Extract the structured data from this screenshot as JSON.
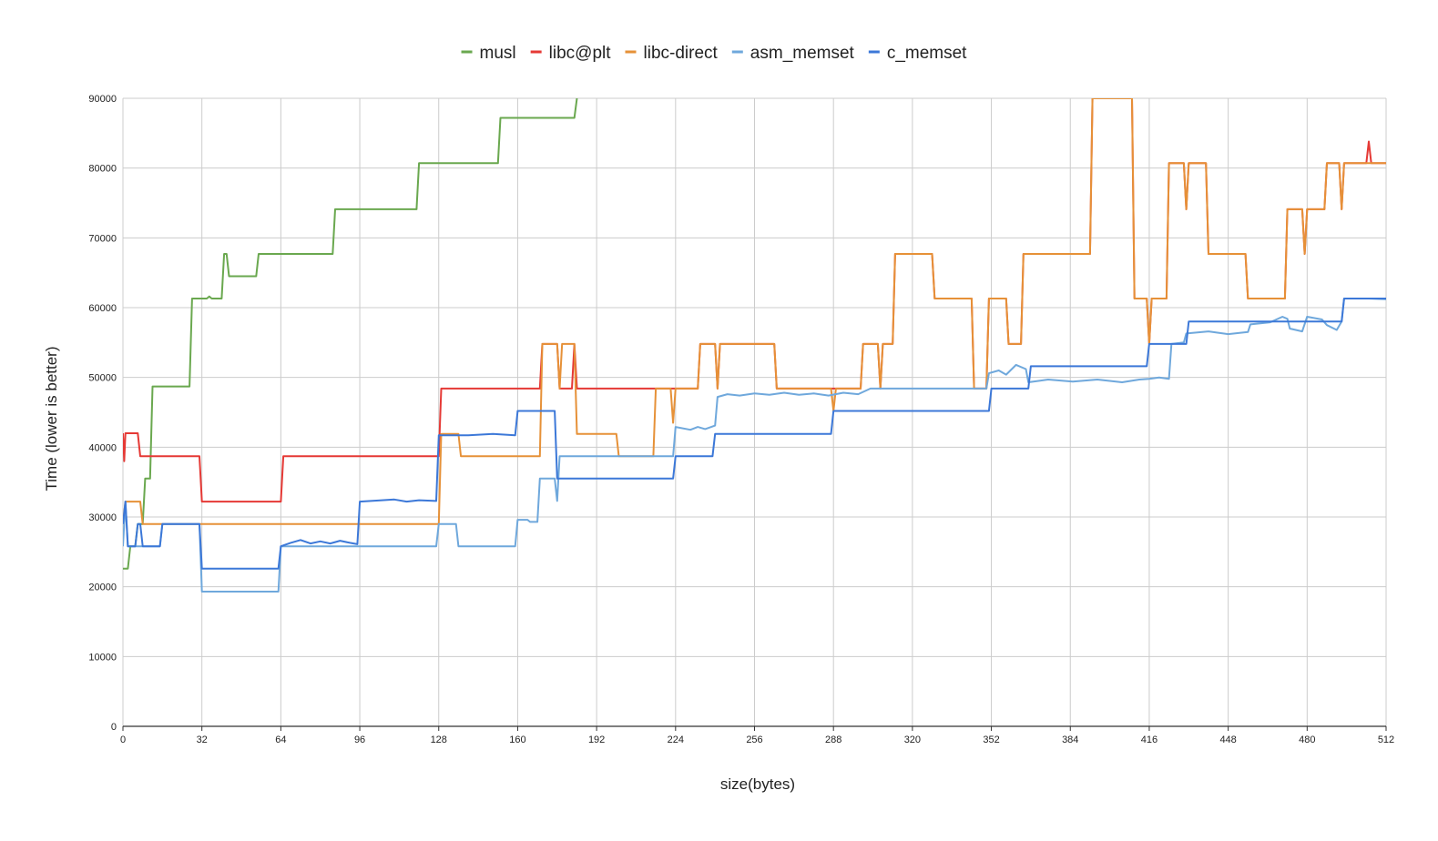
{
  "chart_data": {
    "type": "line",
    "title": "",
    "xlabel": "size(bytes)",
    "ylabel": "Time (lower is better)",
    "xlim": [
      0,
      512
    ],
    "ylim": [
      0,
      90000
    ],
    "x_ticks": [
      0,
      32,
      64,
      96,
      128,
      160,
      192,
      224,
      256,
      288,
      320,
      352,
      384,
      416,
      448,
      480,
      512
    ],
    "y_ticks": [
      0,
      10000,
      20000,
      30000,
      40000,
      50000,
      60000,
      70000,
      80000,
      90000
    ],
    "grid": true,
    "legend_position": "top-center",
    "series": [
      {
        "name": "musl",
        "color": "#6aa84f",
        "points": [
          [
            0,
            22600
          ],
          [
            1,
            22600
          ],
          [
            2,
            22600
          ],
          [
            3,
            25800
          ],
          [
            5,
            25800
          ],
          [
            6,
            29000
          ],
          [
            7,
            29000
          ],
          [
            8,
            29000
          ],
          [
            9,
            35500
          ],
          [
            10,
            35500
          ],
          [
            11,
            35500
          ],
          [
            12,
            48700
          ],
          [
            14,
            48700
          ],
          [
            20,
            48700
          ],
          [
            26,
            48700
          ],
          [
            27,
            48700
          ],
          [
            28,
            61300
          ],
          [
            29,
            61300
          ],
          [
            34,
            61300
          ],
          [
            35,
            61600
          ],
          [
            36,
            61300
          ],
          [
            40,
            61300
          ],
          [
            41,
            67700
          ],
          [
            42,
            67700
          ],
          [
            43,
            64500
          ],
          [
            54,
            64500
          ],
          [
            55,
            67700
          ],
          [
            85,
            67700
          ],
          [
            86,
            74100
          ],
          [
            119,
            74100
          ],
          [
            120,
            80700
          ],
          [
            152,
            80700
          ],
          [
            153,
            87200
          ],
          [
            183,
            87200
          ],
          [
            184,
            90000
          ]
        ]
      },
      {
        "name": "libc@plt",
        "color": "#e53935",
        "points": [
          [
            0,
            42000
          ],
          [
            0.5,
            38000
          ],
          [
            1,
            42000
          ],
          [
            6,
            42000
          ],
          [
            7,
            38700
          ],
          [
            31,
            38700
          ],
          [
            32,
            32200
          ],
          [
            64,
            32200
          ],
          [
            65,
            38700
          ],
          [
            128,
            38700
          ],
          [
            129,
            48400
          ],
          [
            169,
            48400
          ],
          [
            170,
            54800
          ],
          [
            176,
            54800
          ],
          [
            177,
            48400
          ],
          [
            182,
            48400
          ],
          [
            183,
            54800
          ],
          [
            184,
            48400
          ],
          [
            223,
            48400
          ],
          [
            224,
            48400
          ],
          [
            233,
            48400
          ],
          [
            234,
            54800
          ],
          [
            240,
            54800
          ],
          [
            241,
            48400
          ],
          [
            242,
            54800
          ],
          [
            264,
            54800
          ],
          [
            265,
            48400
          ],
          [
            299,
            48400
          ],
          [
            300,
            54800
          ],
          [
            306,
            54800
          ],
          [
            307,
            48400
          ],
          [
            308,
            54800
          ],
          [
            312,
            54800
          ],
          [
            313,
            67700
          ],
          [
            328,
            67700
          ],
          [
            329,
            61300
          ],
          [
            344,
            61300
          ],
          [
            345,
            48400
          ],
          [
            350,
            48400
          ],
          [
            351,
            61300
          ],
          [
            358,
            61300
          ],
          [
            359,
            54800
          ],
          [
            364,
            54800
          ],
          [
            365,
            67700
          ],
          [
            392,
            67700
          ],
          [
            393,
            90000
          ],
          [
            409,
            90000
          ],
          [
            410,
            61300
          ],
          [
            415,
            61300
          ],
          [
            416,
            54800
          ],
          [
            417,
            61300
          ],
          [
            423,
            61300
          ],
          [
            424,
            80700
          ],
          [
            430,
            80700
          ],
          [
            431,
            74100
          ],
          [
            432,
            80700
          ],
          [
            439,
            80700
          ],
          [
            440,
            67700
          ],
          [
            455,
            67700
          ],
          [
            456,
            61300
          ],
          [
            471,
            61300
          ],
          [
            472,
            74100
          ],
          [
            478,
            74100
          ],
          [
            479,
            67700
          ],
          [
            480,
            74100
          ],
          [
            487,
            74100
          ],
          [
            488,
            80700
          ],
          [
            493,
            80700
          ],
          [
            494,
            74100
          ],
          [
            495,
            80700
          ],
          [
            504,
            80700
          ],
          [
            505,
            83800
          ],
          [
            506,
            80700
          ],
          [
            512,
            80700
          ]
        ]
      },
      {
        "name": "libc-direct",
        "color": "#e69138",
        "points": [
          [
            0,
            29000
          ],
          [
            1,
            32200
          ],
          [
            7,
            32200
          ],
          [
            8,
            29000
          ],
          [
            128,
            29000
          ],
          [
            129,
            41900
          ],
          [
            136,
            41900
          ],
          [
            137,
            38700
          ],
          [
            169,
            38700
          ],
          [
            170,
            54800
          ],
          [
            176,
            54800
          ],
          [
            177,
            48400
          ],
          [
            178,
            54800
          ],
          [
            183,
            54800
          ],
          [
            184,
            41900
          ],
          [
            200,
            41900
          ],
          [
            201,
            38700
          ],
          [
            215,
            38700
          ],
          [
            216,
            48400
          ],
          [
            222,
            48400
          ],
          [
            223,
            43500
          ],
          [
            224,
            48400
          ],
          [
            233,
            48400
          ],
          [
            234,
            54800
          ],
          [
            240,
            54800
          ],
          [
            241,
            48400
          ],
          [
            242,
            54800
          ],
          [
            264,
            54800
          ],
          [
            265,
            48400
          ],
          [
            287,
            48400
          ],
          [
            288,
            45200
          ],
          [
            289,
            48400
          ],
          [
            299,
            48400
          ],
          [
            300,
            54800
          ],
          [
            306,
            54800
          ],
          [
            307,
            48400
          ],
          [
            308,
            54800
          ],
          [
            312,
            54800
          ],
          [
            313,
            67700
          ],
          [
            328,
            67700
          ],
          [
            329,
            61300
          ],
          [
            344,
            61300
          ],
          [
            345,
            48400
          ],
          [
            350,
            48400
          ],
          [
            351,
            61300
          ],
          [
            358,
            61300
          ],
          [
            359,
            54800
          ],
          [
            364,
            54800
          ],
          [
            365,
            67700
          ],
          [
            392,
            67700
          ],
          [
            393,
            90000
          ],
          [
            409,
            90000
          ],
          [
            410,
            61300
          ],
          [
            415,
            61300
          ],
          [
            416,
            54800
          ],
          [
            417,
            61300
          ],
          [
            423,
            61300
          ],
          [
            424,
            80700
          ],
          [
            430,
            80700
          ],
          [
            431,
            74100
          ],
          [
            432,
            80700
          ],
          [
            439,
            80700
          ],
          [
            440,
            67700
          ],
          [
            455,
            67700
          ],
          [
            456,
            61300
          ],
          [
            471,
            61300
          ],
          [
            472,
            74100
          ],
          [
            478,
            74100
          ],
          [
            479,
            67700
          ],
          [
            480,
            74100
          ],
          [
            487,
            74100
          ],
          [
            488,
            80700
          ],
          [
            493,
            80700
          ],
          [
            494,
            74100
          ],
          [
            495,
            80700
          ],
          [
            512,
            80700
          ]
        ]
      },
      {
        "name": "asm_memset",
        "color": "#6fa8dc",
        "points": [
          [
            0,
            25800
          ],
          [
            1,
            32200
          ],
          [
            2,
            25800
          ],
          [
            15,
            25800
          ],
          [
            16,
            29000
          ],
          [
            31,
            29000
          ],
          [
            32,
            19300
          ],
          [
            63,
            19300
          ],
          [
            64,
            25800
          ],
          [
            127,
            25800
          ],
          [
            128,
            29000
          ],
          [
            135,
            29000
          ],
          [
            136,
            25800
          ],
          [
            159,
            25800
          ],
          [
            160,
            29600
          ],
          [
            164,
            29600
          ],
          [
            165,
            29300
          ],
          [
            168,
            29300
          ],
          [
            169,
            35500
          ],
          [
            175,
            35500
          ],
          [
            176,
            32300
          ],
          [
            177,
            38700
          ],
          [
            223,
            38700
          ],
          [
            224,
            42900
          ],
          [
            230,
            42500
          ],
          [
            233,
            42900
          ],
          [
            236,
            42600
          ],
          [
            240,
            43100
          ],
          [
            241,
            47200
          ],
          [
            245,
            47600
          ],
          [
            250,
            47400
          ],
          [
            256,
            47700
          ],
          [
            262,
            47500
          ],
          [
            268,
            47800
          ],
          [
            274,
            47500
          ],
          [
            280,
            47700
          ],
          [
            286,
            47400
          ],
          [
            292,
            47800
          ],
          [
            298,
            47600
          ],
          [
            303,
            48400
          ],
          [
            350,
            48400
          ],
          [
            351,
            50600
          ],
          [
            355,
            51000
          ],
          [
            358,
            50400
          ],
          [
            362,
            51800
          ],
          [
            366,
            51200
          ],
          [
            367,
            49300
          ],
          [
            375,
            49700
          ],
          [
            385,
            49400
          ],
          [
            395,
            49700
          ],
          [
            405,
            49300
          ],
          [
            412,
            49700
          ],
          [
            416,
            49800
          ],
          [
            420,
            50000
          ],
          [
            424,
            49800
          ],
          [
            425,
            54800
          ],
          [
            430,
            55000
          ],
          [
            431,
            56300
          ],
          [
            440,
            56600
          ],
          [
            448,
            56200
          ],
          [
            456,
            56500
          ],
          [
            457,
            57600
          ],
          [
            465,
            57900
          ],
          [
            470,
            58700
          ],
          [
            472,
            58400
          ],
          [
            473,
            57000
          ],
          [
            478,
            56600
          ],
          [
            480,
            58700
          ],
          [
            486,
            58300
          ],
          [
            488,
            57500
          ],
          [
            492,
            56800
          ],
          [
            494,
            58000
          ],
          [
            495,
            61300
          ],
          [
            505,
            61300
          ],
          [
            512,
            61200
          ]
        ]
      },
      {
        "name": "c_memset",
        "color": "#3c78d8",
        "points": [
          [
            0,
            29000
          ],
          [
            1,
            32200
          ],
          [
            2,
            25800
          ],
          [
            5,
            25800
          ],
          [
            6,
            29000
          ],
          [
            7,
            29000
          ],
          [
            8,
            25800
          ],
          [
            15,
            25800
          ],
          [
            16,
            29000
          ],
          [
            31,
            29000
          ],
          [
            32,
            22600
          ],
          [
            63,
            22600
          ],
          [
            64,
            25800
          ],
          [
            68,
            26300
          ],
          [
            72,
            26700
          ],
          [
            76,
            26200
          ],
          [
            80,
            26500
          ],
          [
            84,
            26200
          ],
          [
            88,
            26600
          ],
          [
            92,
            26300
          ],
          [
            95,
            26100
          ],
          [
            96,
            32200
          ],
          [
            105,
            32400
          ],
          [
            110,
            32500
          ],
          [
            115,
            32200
          ],
          [
            120,
            32400
          ],
          [
            127,
            32300
          ],
          [
            128,
            41700
          ],
          [
            140,
            41700
          ],
          [
            150,
            41900
          ],
          [
            159,
            41700
          ],
          [
            160,
            45200
          ],
          [
            175,
            45200
          ],
          [
            176,
            35500
          ],
          [
            223,
            35500
          ],
          [
            224,
            38700
          ],
          [
            239,
            38700
          ],
          [
            240,
            41900
          ],
          [
            287,
            41900
          ],
          [
            288,
            45200
          ],
          [
            351,
            45200
          ],
          [
            352,
            48400
          ],
          [
            367,
            48400
          ],
          [
            368,
            51600
          ],
          [
            415,
            51600
          ],
          [
            416,
            54800
          ],
          [
            431,
            54800
          ],
          [
            432,
            58000
          ],
          [
            494,
            58000
          ],
          [
            495,
            61300
          ],
          [
            512,
            61300
          ]
        ]
      }
    ]
  }
}
